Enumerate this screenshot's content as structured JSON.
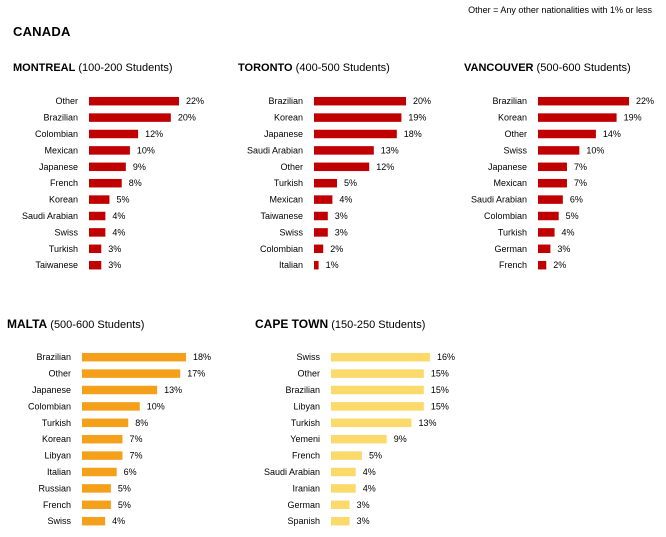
{
  "note": "Other = Any other nationalities with 1% or less",
  "region": "CANADA",
  "colors": {
    "red": "#c00000",
    "orange": "#f5a01a",
    "yellow": "#fbd96a"
  },
  "panels": [
    {
      "id": "montreal",
      "name": "MONTREAL",
      "detail": "(100-200 Students)"
    },
    {
      "id": "toronto",
      "name": "TORONTO",
      "detail": "(400-500 Students)"
    },
    {
      "id": "vancouver",
      "name": "VANCOUVER",
      "detail": "(500-600 Students)"
    },
    {
      "id": "malta",
      "name": "MALTA",
      "detail": "(500-600 Students)"
    },
    {
      "id": "capetown",
      "name": "CAPE TOWN",
      "detail": "(150-250 Students)"
    }
  ],
  "chart_data": [
    {
      "type": "bar",
      "title": "MONTREAL (100-200 Students)",
      "unit": "%",
      "xlim": [
        0,
        22
      ],
      "categories": [
        "Other",
        "Brazilian",
        "Colombian",
        "Mexican",
        "Japanese",
        "French",
        "Korean",
        "Saudi Arabian",
        "Swiss",
        "Turkish",
        "Taiwanese"
      ],
      "values": [
        22,
        20,
        12,
        10,
        9,
        8,
        5,
        4,
        4,
        3,
        3
      ]
    },
    {
      "type": "bar",
      "title": "TORONTO (400-500 Students)",
      "unit": "%",
      "xlim": [
        0,
        20
      ],
      "categories": [
        "Brazilian",
        "Korean",
        "Japanese",
        "Saudi Arabian",
        "Other",
        "Turkish",
        "Mexican",
        "Taiwanese",
        "Swiss",
        "Colombian",
        "Italian"
      ],
      "values": [
        20,
        19,
        18,
        13,
        12,
        5,
        4,
        3,
        3,
        2,
        1
      ]
    },
    {
      "type": "bar",
      "title": "VANCOUVER (500-600 Students)",
      "unit": "%",
      "xlim": [
        0,
        22
      ],
      "categories": [
        "Brazilian",
        "Korean",
        "Other",
        "Swiss",
        "Japanese",
        "Mexican",
        "Saudi Arabian",
        "Colombian",
        "Turkish",
        "German",
        "French"
      ],
      "values": [
        22,
        19,
        14,
        10,
        7,
        7,
        6,
        5,
        4,
        3,
        2
      ]
    },
    {
      "type": "bar",
      "title": "MALTA (500-600 Students)",
      "unit": "%",
      "xlim": [
        0,
        18
      ],
      "categories": [
        "Brazilian",
        "Other",
        "Japanese",
        "Colombian",
        "Turkish",
        "Korean",
        "Libyan",
        "Italian",
        "Russian",
        "French",
        "Swiss"
      ],
      "values": [
        18,
        17,
        13,
        10,
        8,
        7,
        7,
        6,
        5,
        5,
        4
      ]
    },
    {
      "type": "bar",
      "title": "CAPE TOWN (150-250 Students)",
      "unit": "%",
      "xlim": [
        0,
        16
      ],
      "categories": [
        "Swiss",
        "Other",
        "Brazilian",
        "Libyan",
        "Turkish",
        "Yemeni",
        "French",
        "Saudi Arabian",
        "Iranian",
        "German",
        "Spanish"
      ],
      "values": [
        16,
        15,
        15,
        15,
        13,
        9,
        5,
        4,
        4,
        3,
        3
      ]
    }
  ]
}
